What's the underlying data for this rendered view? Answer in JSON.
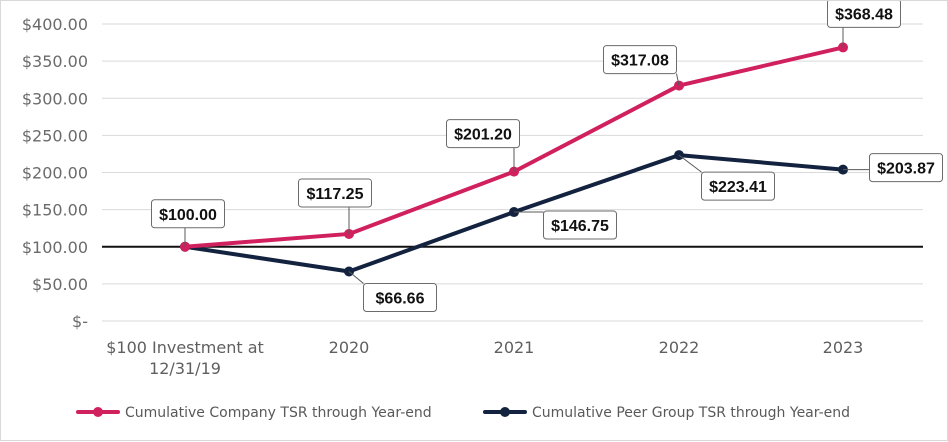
{
  "chart_data": {
    "type": "line",
    "title": "",
    "xlabel": "",
    "ylabel": "",
    "ylim": [
      0,
      400
    ],
    "y_ticks": [
      0,
      50,
      100,
      150,
      200,
      250,
      300,
      350,
      400
    ],
    "y_tick_labels": [
      "$-",
      "$50.00",
      "$100.00",
      "$150.00",
      "$200.00",
      "$250.00",
      "$300.00",
      "$350.00",
      "$400.00"
    ],
    "categories": [
      {
        "line1": "$100 Investment at",
        "line2": "12/31/19"
      },
      {
        "line1": "2020",
        "line2": ""
      },
      {
        "line1": "2021",
        "line2": ""
      },
      {
        "line1": "2022",
        "line2": ""
      },
      {
        "line1": "2023",
        "line2": ""
      }
    ],
    "reference_line": 100,
    "grid": true,
    "legend_position": "bottom",
    "series": [
      {
        "name": "Cumulative Company TSR through Year-end",
        "color": "#d0205e",
        "values": [
          100.0,
          117.25,
          201.2,
          317.08,
          368.48
        ],
        "labels": [
          "$100.00",
          "$117.25",
          "$201.20",
          "$317.08",
          "$368.48"
        ]
      },
      {
        "name": "Cumulative Peer Group TSR through Year-end",
        "color": "#13233f",
        "values": [
          100.0,
          66.66,
          146.75,
          223.41,
          203.87
        ],
        "labels": [
          "",
          "$66.66",
          "$146.75",
          "$223.41",
          "$203.87"
        ]
      }
    ]
  }
}
